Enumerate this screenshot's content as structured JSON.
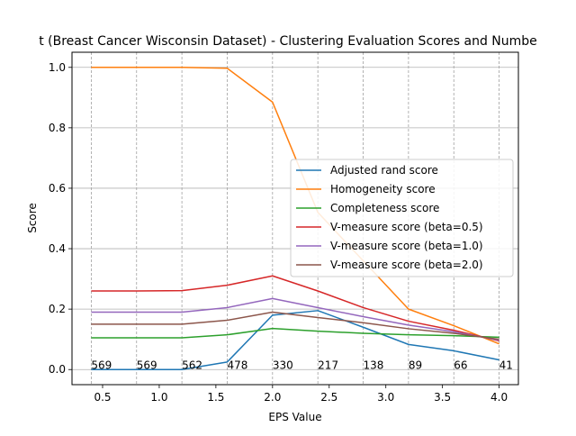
{
  "chart_data": {
    "type": "line",
    "title": "t (Breast Cancer Wisconsin Dataset) - Clustering Evaluation Scores and Numbe",
    "xlabel": "EPS Value",
    "ylabel": "Score",
    "xlim": [
      0.23,
      4.17
    ],
    "ylim": [
      -0.05,
      1.05
    ],
    "x_ticks": [
      "0.5",
      "1.0",
      "1.5",
      "2.0",
      "2.5",
      "3.0",
      "3.5",
      "4.0"
    ],
    "x_tick_values": [
      0.5,
      1.0,
      1.5,
      2.0,
      2.5,
      3.0,
      3.5,
      4.0
    ],
    "y_ticks": [
      "0.0",
      "0.2",
      "0.4",
      "0.6",
      "0.8",
      "1.0"
    ],
    "y_tick_values": [
      0.0,
      0.2,
      0.4,
      0.6,
      0.8,
      1.0
    ],
    "grid": true,
    "legend_position": "center-right",
    "x": [
      0.4,
      0.8,
      1.2,
      1.6,
      2.0,
      2.4,
      2.8,
      3.2,
      3.6,
      4.0
    ],
    "series": [
      {
        "name": "Adjusted rand score",
        "color": "#1f77b4",
        "values": [
          0.0,
          0.0,
          0.0,
          0.025,
          0.18,
          0.195,
          0.14,
          0.083,
          0.062,
          0.032
        ]
      },
      {
        "name": "Homogeneity score",
        "color": "#ff7f0e",
        "values": [
          1.0,
          1.0,
          1.0,
          0.997,
          0.885,
          0.52,
          0.36,
          0.2,
          0.145,
          0.085
        ]
      },
      {
        "name": "Completeness score",
        "color": "#2ca02c",
        "values": [
          0.105,
          0.105,
          0.105,
          0.115,
          0.136,
          0.127,
          0.12,
          0.115,
          0.112,
          0.107
        ]
      },
      {
        "name": "V-measure score (beta=0.5)",
        "color": "#d62728",
        "values": [
          0.26,
          0.26,
          0.261,
          0.279,
          0.31,
          0.26,
          0.205,
          0.16,
          0.13,
          0.095
        ]
      },
      {
        "name": "V-measure score (beta=1.0)",
        "color": "#9467bd",
        "values": [
          0.19,
          0.19,
          0.19,
          0.205,
          0.235,
          0.205,
          0.175,
          0.147,
          0.125,
          0.097
        ]
      },
      {
        "name": "V-measure score (beta=2.0)",
        "color": "#8c564b",
        "values": [
          0.15,
          0.15,
          0.15,
          0.163,
          0.19,
          0.172,
          0.155,
          0.135,
          0.12,
          0.1
        ]
      }
    ],
    "cluster_counts": [
      "569",
      "569",
      "562",
      "478",
      "330",
      "217",
      "138",
      "89",
      "66",
      "41"
    ]
  }
}
